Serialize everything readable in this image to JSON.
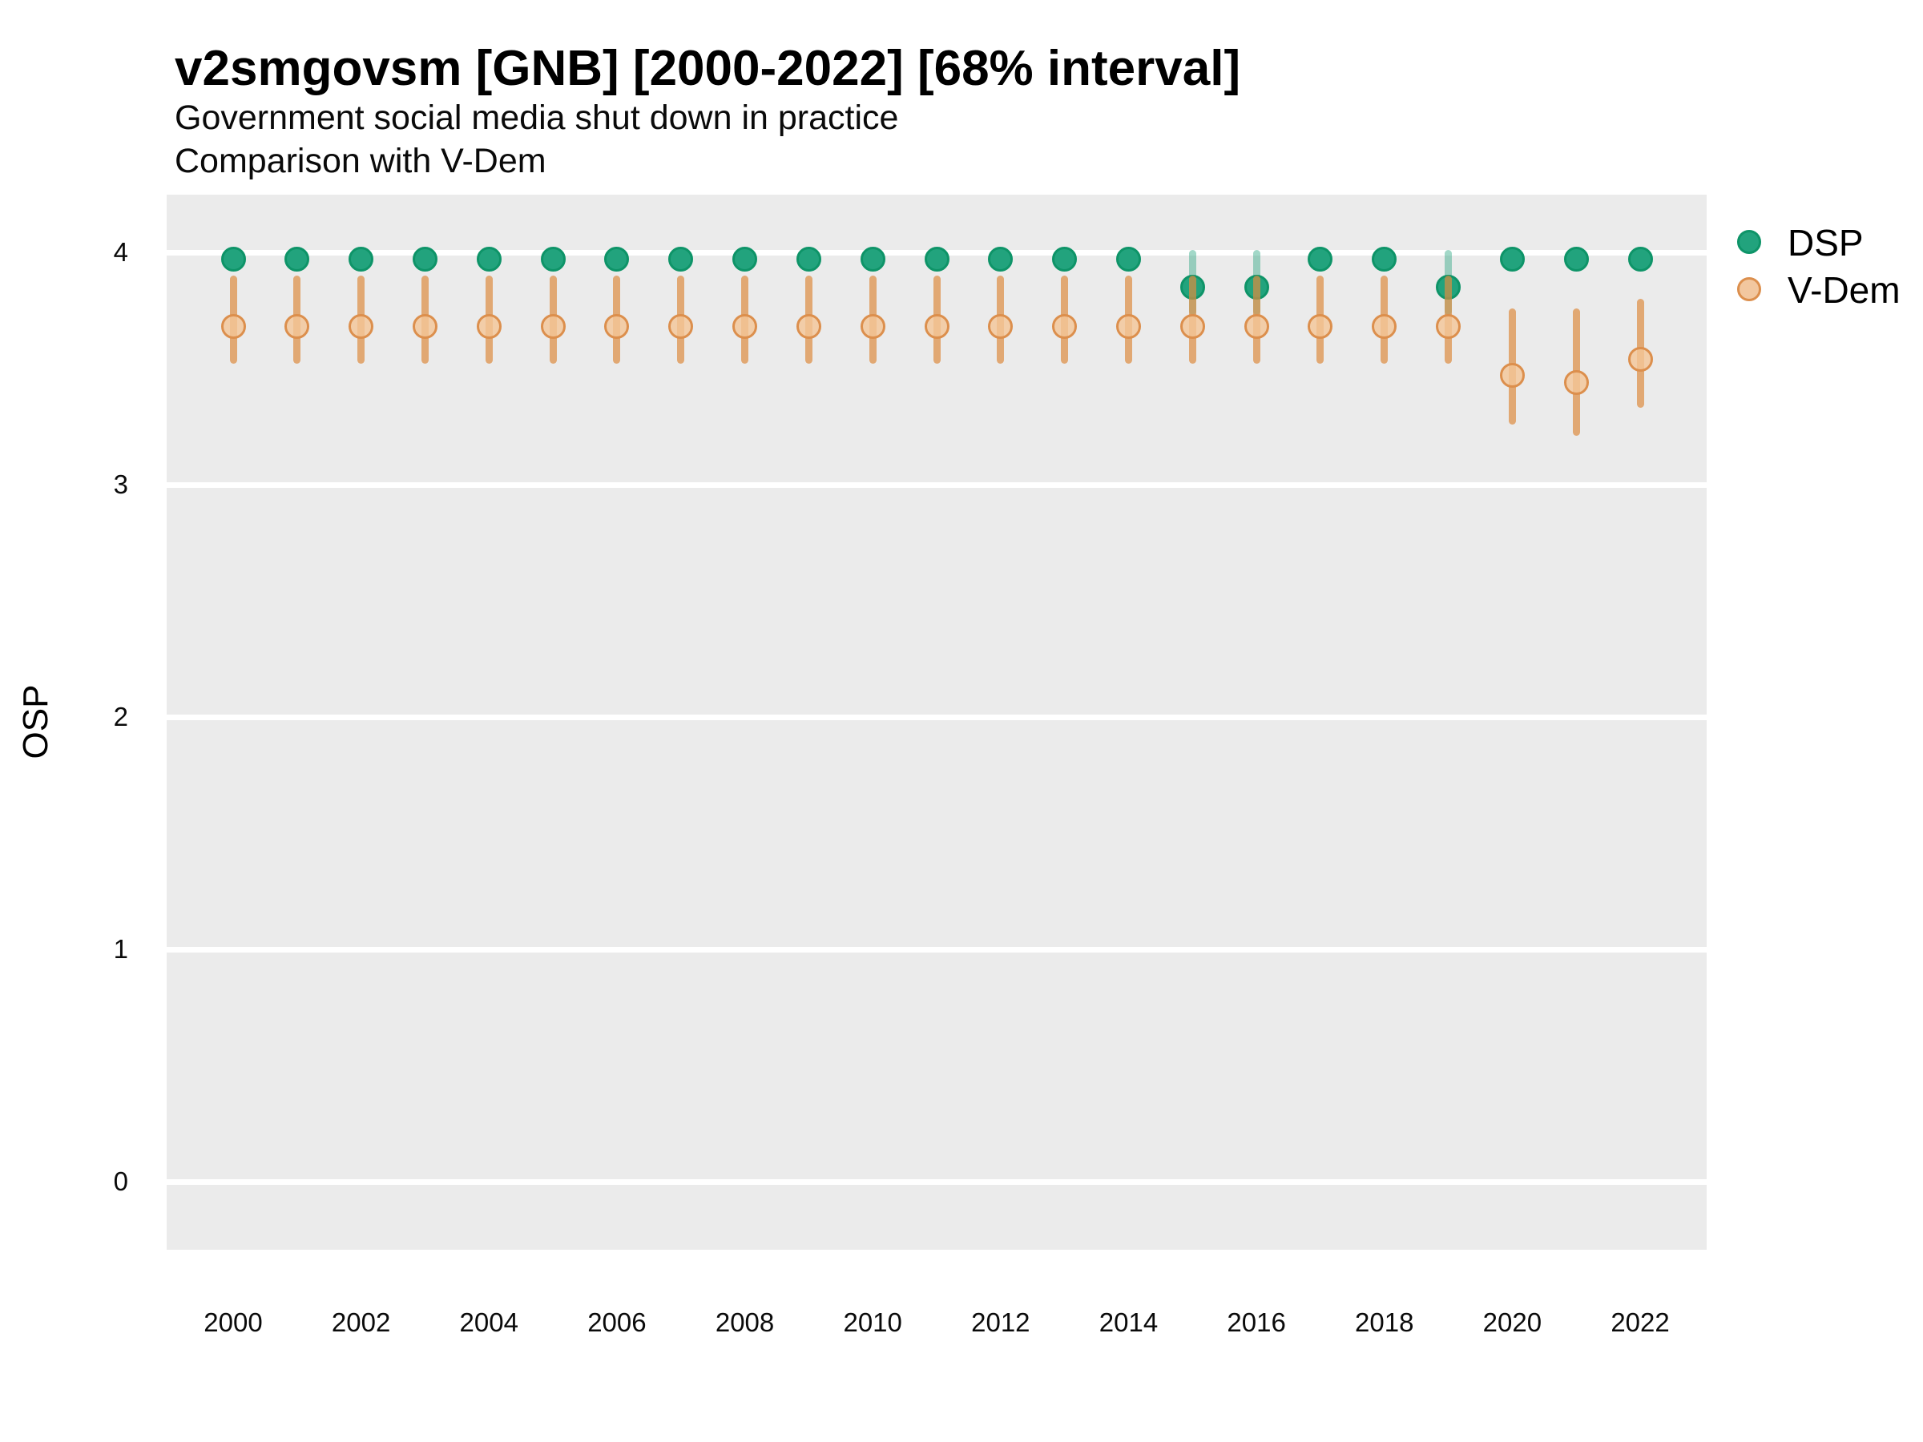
{
  "header": {
    "title": "v2smgovsm [GNB] [2000-2022] [68% interval]",
    "subtitle_line1": "Government social media shut down in practice",
    "subtitle_line2": "Comparison with V-Dem"
  },
  "colors": {
    "dsp_fill": "#22A37D",
    "dsp_stroke": "#0E9468",
    "dsp_interval": "rgba(34,163,125,0.42)",
    "vdem_fill": "rgba(244,197,151,0.8)",
    "vdem_legend_fill": "#F2C79F",
    "vdem_stroke": "#DC8F4D",
    "vdem_interval": "rgba(221,139,64,0.70)",
    "plot_background": "#EBEBEB",
    "grid": "#FFFFFF",
    "text": "#000000"
  },
  "chart_data": {
    "type": "scatter",
    "variant": "pointrange-interval",
    "title": "v2smgovsm [GNB] [2000-2022] [68% interval]",
    "subtitle": [
      "Government social media shut down in practice",
      "Comparison with V-Dem"
    ],
    "xlabel": "",
    "ylabel": "OSP",
    "interval_label": "68% interval",
    "x_ticks": [
      2000,
      2002,
      2004,
      2006,
      2008,
      2010,
      2012,
      2014,
      2016,
      2018,
      2020,
      2022
    ],
    "y_ticks": [
      0,
      1,
      2,
      3,
      4
    ],
    "xlim": [
      1999,
      2023.1
    ],
    "ylim": [
      -0.29,
      4.25
    ],
    "grid": "horizontal white major lines on gray panel",
    "legend_position": "right",
    "x": [
      2000,
      2001,
      2002,
      2003,
      2004,
      2005,
      2006,
      2007,
      2008,
      2009,
      2010,
      2011,
      2012,
      2013,
      2014,
      2015,
      2016,
      2017,
      2018,
      2019,
      2020,
      2021,
      2022
    ],
    "series": [
      {
        "name": "DSP",
        "values": [
          3.97,
          3.97,
          3.97,
          3.97,
          3.97,
          3.97,
          3.97,
          3.97,
          3.97,
          3.97,
          3.97,
          3.97,
          3.97,
          3.97,
          3.97,
          3.85,
          3.85,
          3.97,
          3.97,
          3.85,
          3.97,
          3.97,
          3.97
        ],
        "lo": [
          3.93,
          3.93,
          3.93,
          3.93,
          3.93,
          3.93,
          3.93,
          3.93,
          3.93,
          3.93,
          3.93,
          3.93,
          3.93,
          3.93,
          3.93,
          3.73,
          3.73,
          3.93,
          3.93,
          3.73,
          3.93,
          3.93,
          3.93
        ],
        "hi": [
          4.0,
          4.0,
          4.0,
          4.0,
          4.0,
          4.0,
          4.0,
          4.0,
          4.0,
          4.0,
          4.0,
          4.0,
          4.0,
          4.0,
          4.0,
          4.01,
          4.01,
          4.0,
          4.0,
          4.01,
          4.0,
          4.0,
          4.0
        ]
      },
      {
        "name": "V-Dem",
        "values": [
          3.68,
          3.68,
          3.68,
          3.68,
          3.68,
          3.68,
          3.68,
          3.68,
          3.68,
          3.68,
          3.68,
          3.68,
          3.68,
          3.68,
          3.68,
          3.68,
          3.68,
          3.68,
          3.68,
          3.68,
          3.47,
          3.44,
          3.54
        ],
        "lo": [
          3.52,
          3.52,
          3.52,
          3.52,
          3.52,
          3.52,
          3.52,
          3.52,
          3.52,
          3.52,
          3.52,
          3.52,
          3.52,
          3.52,
          3.52,
          3.52,
          3.52,
          3.52,
          3.52,
          3.52,
          3.26,
          3.21,
          3.33
        ],
        "hi": [
          3.9,
          3.9,
          3.9,
          3.9,
          3.9,
          3.9,
          3.9,
          3.9,
          3.9,
          3.9,
          3.9,
          3.9,
          3.9,
          3.9,
          3.9,
          3.9,
          3.9,
          3.9,
          3.9,
          3.9,
          3.76,
          3.76,
          3.8
        ]
      }
    ]
  },
  "legend": {
    "items": [
      {
        "label": "DSP"
      },
      {
        "label": "V-Dem"
      }
    ]
  }
}
